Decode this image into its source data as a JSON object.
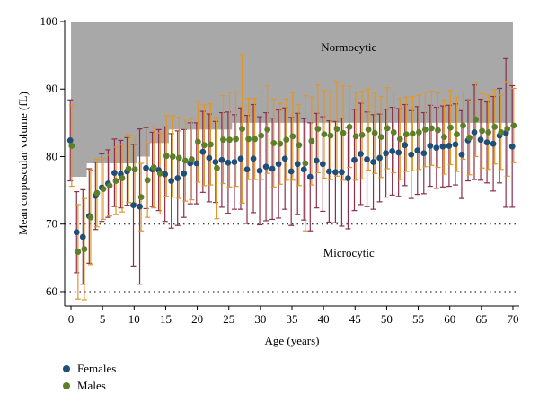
{
  "chart_data": {
    "type": "scatter",
    "xlabel": "Age (years)",
    "ylabel": "Mean corpuscular volume (fL)",
    "xlim": [
      -1,
      71
    ],
    "ylim": [
      58,
      100
    ],
    "xticks": [
      "0",
      "5",
      "10",
      "15",
      "20",
      "25",
      "30",
      "35",
      "40",
      "45",
      "50",
      "55",
      "60",
      "65",
      "70"
    ],
    "yticks": [
      "60",
      "70",
      "80",
      "90",
      "100"
    ],
    "reference_lines": [
      60,
      70
    ],
    "annotations": [
      "Normocytic",
      "Microcytic"
    ],
    "normocytic_lower_bound": {
      "age": [
        0,
        1,
        2,
        3,
        4,
        5,
        6,
        7,
        8,
        9,
        10,
        11,
        12,
        13,
        14,
        15,
        16,
        17,
        18,
        19,
        20,
        21,
        22,
        23,
        24,
        25,
        26,
        27,
        28,
        29,
        30,
        31,
        32,
        33,
        34,
        35,
        36,
        37,
        38,
        39,
        40,
        41,
        42,
        43,
        44,
        45,
        46,
        47,
        48,
        49,
        50,
        51,
        52,
        53,
        54,
        55,
        56,
        57,
        58,
        59,
        60,
        61,
        62,
        63,
        64,
        65,
        66,
        67,
        68,
        69,
        70
      ],
      "mcv": [
        77,
        77,
        77,
        79,
        79,
        79,
        79,
        79,
        79,
        79,
        79,
        80,
        80,
        82,
        82,
        82,
        84,
        84,
        84,
        84,
        84,
        84,
        84,
        84,
        84,
        84,
        85,
        85,
        85,
        85,
        85,
        85,
        85,
        85,
        85,
        85,
        85,
        85,
        85,
        85,
        85,
        85,
        85,
        85,
        85,
        85,
        85,
        85,
        85,
        85,
        85,
        85,
        85,
        85,
        85,
        85,
        85,
        85,
        85,
        85,
        85,
        85,
        85,
        85,
        85,
        85,
        85,
        85,
        85,
        85,
        85
      ]
    },
    "series": [
      {
        "name": "Females",
        "color": "#1f4e79",
        "errbar_color": "#8b2f4a",
        "x": [
          0,
          1,
          2,
          3,
          4,
          5,
          6,
          7,
          8,
          9,
          10,
          11,
          12,
          13,
          14,
          15,
          16,
          17,
          18,
          19,
          20,
          21,
          22,
          23,
          24,
          25,
          26,
          27,
          28,
          29,
          30,
          31,
          32,
          33,
          34,
          35,
          36,
          37,
          38,
          39,
          40,
          41,
          42,
          43,
          44,
          45,
          46,
          47,
          48,
          49,
          50,
          51,
          52,
          53,
          54,
          55,
          56,
          57,
          58,
          59,
          60,
          61,
          62,
          63,
          64,
          65,
          66,
          67,
          68,
          69,
          70
        ],
        "y": [
          82.4,
          68.8,
          68.1,
          71.2,
          74.2,
          75.4,
          76.0,
          77.6,
          77.4,
          77.8,
          72.8,
          72.6,
          78.3,
          78.1,
          78.0,
          77.4,
          76.4,
          76.8,
          77.5,
          79.0,
          79.0,
          80.7,
          79.8,
          79.2,
          79.5,
          79.1,
          79.2,
          79.7,
          78.1,
          79.7,
          77.9,
          78.5,
          78.2,
          78.9,
          79.7,
          77.8,
          78.9,
          78.1,
          77.0,
          79.4,
          78.9,
          77.8,
          77.7,
          77.7,
          76.8,
          79.5,
          80.4,
          79.6,
          79.2,
          79.8,
          80.5,
          80.8,
          80.6,
          81.7,
          80.3,
          80.9,
          80.5,
          81.6,
          81.3,
          81.5,
          81.6,
          81.8,
          80.3,
          82.4,
          83.6,
          82.5,
          82.1,
          81.9,
          83.1,
          83.5,
          81.5
        ],
        "sd": [
          6.0,
          6.0,
          7.0,
          7.0,
          5.0,
          5.0,
          5.0,
          5.0,
          5.0,
          5.0,
          9.0,
          11.5,
          6.0,
          5.5,
          6.0,
          7.0,
          7.0,
          7.0,
          6.5,
          6.0,
          6.0,
          6.0,
          6.5,
          6.0,
          7.0,
          7.5,
          7.0,
          7.5,
          8.0,
          8.0,
          8.0,
          8.0,
          7.5,
          8.0,
          7.5,
          8.0,
          7.5,
          7.5,
          8.0,
          7.0,
          7.0,
          7.5,
          7.5,
          8.0,
          7.5,
          7.5,
          7.5,
          7.0,
          7.0,
          6.5,
          6.5,
          6.5,
          6.5,
          6.0,
          6.5,
          6.5,
          6.0,
          6.0,
          6.0,
          6.0,
          6.0,
          6.0,
          6.5,
          6.0,
          7.0,
          6.0,
          6.0,
          7.0,
          7.0,
          11.0,
          9.0
        ]
      },
      {
        "name": "Males",
        "color": "#5d7f2a",
        "errbar_color": "#e0962a",
        "x": [
          0,
          1,
          2,
          3,
          4,
          5,
          6,
          7,
          8,
          9,
          10,
          11,
          12,
          13,
          14,
          15,
          16,
          17,
          18,
          19,
          20,
          21,
          22,
          23,
          24,
          25,
          26,
          27,
          28,
          29,
          30,
          31,
          32,
          33,
          34,
          35,
          36,
          37,
          38,
          39,
          40,
          41,
          42,
          43,
          44,
          45,
          46,
          47,
          48,
          49,
          50,
          51,
          52,
          53,
          54,
          55,
          56,
          57,
          58,
          59,
          60,
          61,
          62,
          63,
          64,
          65,
          66,
          67,
          68,
          69,
          70
        ],
        "y": [
          81.6,
          65.9,
          66.3,
          71.0,
          74.6,
          75.2,
          75.7,
          76.4,
          76.8,
          78.2,
          78.1,
          74.0,
          76.5,
          78.4,
          77.5,
          80.1,
          80.0,
          79.8,
          79.4,
          79.6,
          82.2,
          81.7,
          81.8,
          78.3,
          82.5,
          82.5,
          82.6,
          84.1,
          82.6,
          82.6,
          83.1,
          84.0,
          82.0,
          81.9,
          82.5,
          83.0,
          81.7,
          79.0,
          82.3,
          84.1,
          83.3,
          83.1,
          84.1,
          83.5,
          84.4,
          83.0,
          83.2,
          84.0,
          83.5,
          82.9,
          84.2,
          83.6,
          82.6,
          83.3,
          83.4,
          83.6,
          84.0,
          84.2,
          83.9,
          82.9,
          84.3,
          83.3,
          84.6,
          82.8,
          85.5,
          83.8,
          83.6,
          84.4,
          83.6,
          84.1,
          84.6
        ],
        "sd": [
          6.0,
          7.0,
          7.5,
          7.0,
          5.0,
          4.5,
          4.5,
          5.0,
          5.0,
          5.0,
          5.0,
          5.0,
          5.5,
          6.0,
          6.0,
          6.0,
          6.0,
          6.0,
          6.0,
          6.0,
          6.0,
          6.0,
          6.0,
          7.5,
          6.5,
          7.0,
          7.0,
          11.0,
          6.0,
          6.0,
          6.5,
          6.5,
          6.5,
          6.0,
          6.0,
          6.5,
          6.0,
          10.0,
          6.5,
          6.5,
          6.5,
          6.5,
          7.0,
          7.0,
          6.0,
          6.5,
          6.5,
          6.0,
          6.0,
          6.0,
          6.0,
          6.0,
          6.0,
          5.5,
          5.5,
          5.5,
          5.5,
          5.5,
          5.5,
          5.5,
          5.5,
          5.5,
          5.0,
          5.5,
          5.5,
          5.5,
          5.5,
          5.5,
          5.5,
          7.0,
          5.5
        ]
      }
    ]
  }
}
